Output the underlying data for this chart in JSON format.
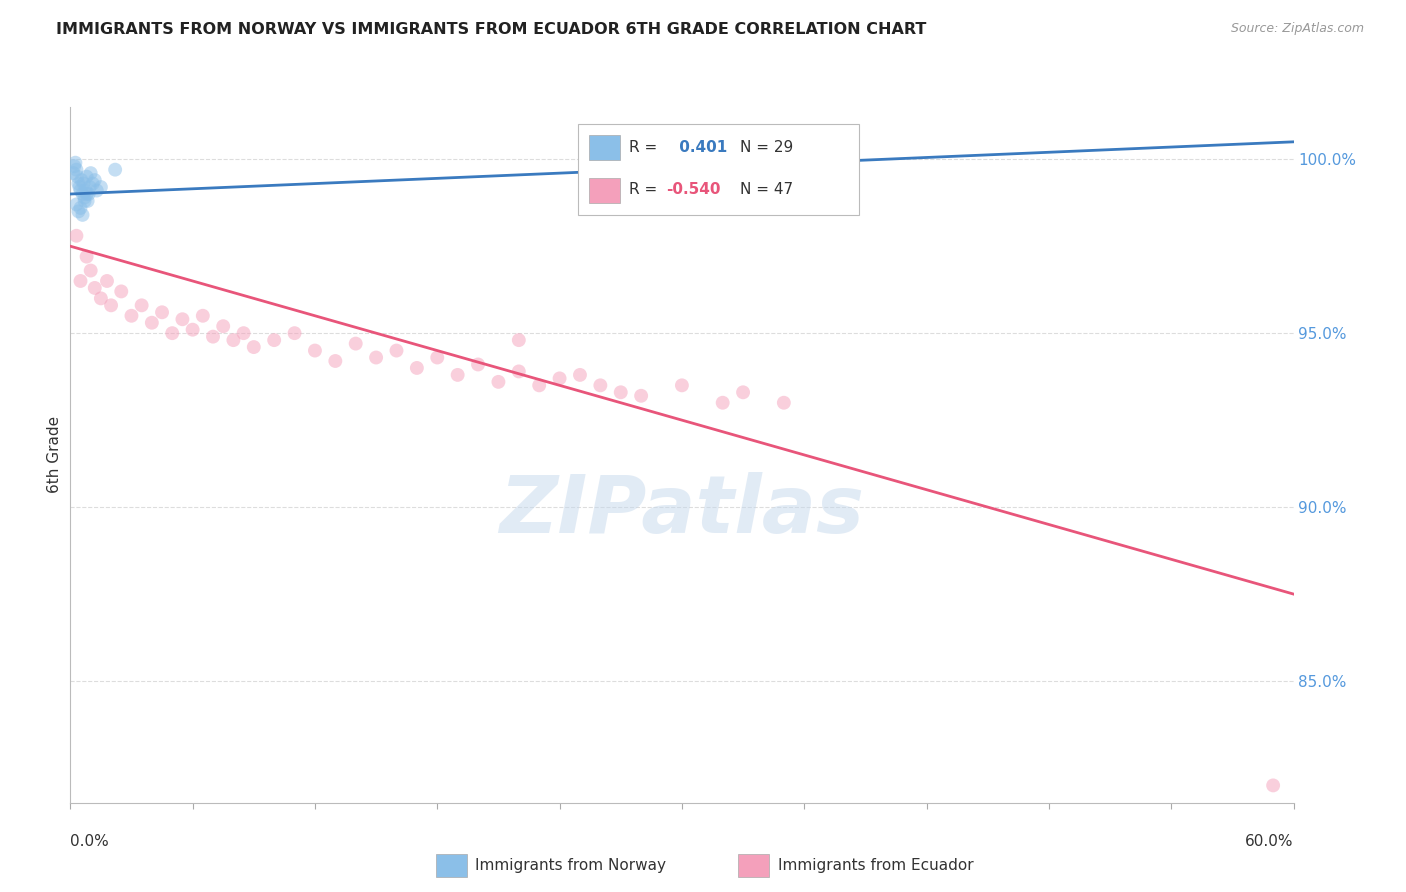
{
  "title": "IMMIGRANTS FROM NORWAY VS IMMIGRANTS FROM ECUADOR 6TH GRADE CORRELATION CHART",
  "source": "Source: ZipAtlas.com",
  "ylabel": "6th Grade",
  "xlim": [
    0.0,
    60.0
  ],
  "ylim": [
    81.5,
    101.5
  ],
  "norway_color": "#8bbfe8",
  "ecuador_color": "#f4a0bb",
  "norway_line_color": "#3a7abf",
  "ecuador_line_color": "#e8557a",
  "norway_R": 0.401,
  "norway_N": 29,
  "ecuador_R": -0.54,
  "ecuador_N": 47,
  "norway_points_x": [
    0.15,
    0.2,
    0.25,
    0.3,
    0.35,
    0.4,
    0.45,
    0.5,
    0.55,
    0.6,
    0.65,
    0.7,
    0.75,
    0.8,
    0.85,
    0.9,
    0.95,
    1.0,
    1.1,
    1.2,
    1.3,
    1.5,
    0.3,
    0.4,
    0.5,
    0.6,
    0.7,
    0.8,
    2.2
  ],
  "norway_points_y": [
    99.6,
    99.8,
    99.9,
    99.7,
    99.5,
    99.3,
    99.2,
    99.1,
    99.4,
    99.0,
    99.3,
    98.9,
    99.1,
    99.5,
    98.8,
    99.0,
    99.2,
    99.6,
    99.3,
    99.4,
    99.1,
    99.2,
    98.7,
    98.5,
    98.6,
    98.4,
    98.8,
    99.0,
    99.7
  ],
  "ecuador_points_x": [
    0.3,
    0.5,
    0.8,
    1.0,
    1.2,
    1.5,
    1.8,
    2.0,
    2.5,
    3.0,
    3.5,
    4.0,
    4.5,
    5.0,
    5.5,
    6.0,
    6.5,
    7.0,
    7.5,
    8.0,
    8.5,
    9.0,
    10.0,
    11.0,
    12.0,
    13.0,
    14.0,
    15.0,
    16.0,
    17.0,
    18.0,
    19.0,
    20.0,
    21.0,
    22.0,
    23.0,
    24.0,
    26.0,
    28.0,
    30.0,
    33.0,
    35.0,
    22.0,
    27.0,
    32.0,
    59.0,
    25.0
  ],
  "ecuador_points_y": [
    97.8,
    96.5,
    97.2,
    96.8,
    96.3,
    96.0,
    96.5,
    95.8,
    96.2,
    95.5,
    95.8,
    95.3,
    95.6,
    95.0,
    95.4,
    95.1,
    95.5,
    94.9,
    95.2,
    94.8,
    95.0,
    94.6,
    94.8,
    95.0,
    94.5,
    94.2,
    94.7,
    94.3,
    94.5,
    94.0,
    94.3,
    93.8,
    94.1,
    93.6,
    93.9,
    93.5,
    93.7,
    93.5,
    93.2,
    93.5,
    93.3,
    93.0,
    94.8,
    93.3,
    93.0,
    82.0,
    93.8
  ],
  "norway_trend_x": [
    0.0,
    60.0
  ],
  "norway_trend_y": [
    99.0,
    100.5
  ],
  "ecuador_trend_x": [
    0.0,
    60.0
  ],
  "ecuador_trend_y": [
    97.5,
    87.5
  ],
  "yticks": [
    85.0,
    90.0,
    95.0,
    100.0
  ],
  "ytick_labels": [
    "85.0%",
    "90.0%",
    "95.0%",
    "100.0%"
  ],
  "ytick_color": "#5599dd",
  "grid_color": "#dddddd",
  "background_color": "#ffffff",
  "watermark_text": "ZIPatlas",
  "marker_size": 100,
  "marker_alpha": 0.5,
  "legend_norway_label": "Immigrants from Norway",
  "legend_ecuador_label": "Immigrants from Ecuador"
}
